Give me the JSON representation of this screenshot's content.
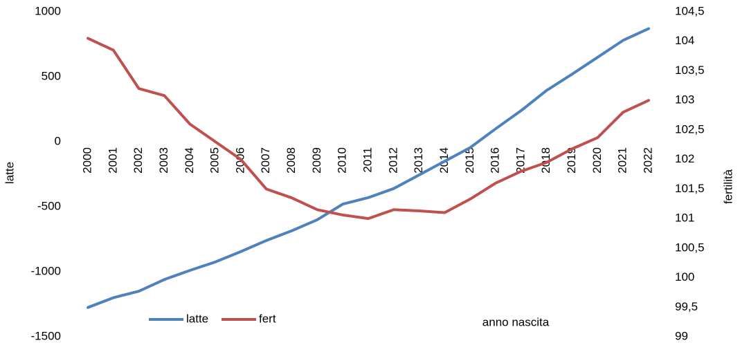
{
  "chart_data": {
    "type": "line",
    "categories": [
      "2000",
      "2001",
      "2002",
      "2003",
      "2004",
      "2005",
      "2006",
      "2007",
      "2008",
      "2009",
      "2010",
      "2011",
      "2012",
      "2013",
      "2014",
      "2015",
      "2016",
      "2017",
      "2018",
      "2019",
      "2020",
      "2021",
      "2022"
    ],
    "series": [
      {
        "name": "latte",
        "color": "#4f81bd",
        "values": [
          -1275,
          -1200,
          -1150,
          -1060,
          -990,
          -925,
          -845,
          -760,
          -685,
          -600,
          -480,
          -430,
          -360,
          -255,
          -150,
          -45,
          100,
          240,
          395,
          520,
          650,
          780,
          870
        ]
      },
      {
        "name": "fert",
        "color": "#c0504d",
        "axis": "y2",
        "values": [
          104.05,
          103.85,
          103.2,
          103.08,
          102.6,
          102.3,
          102.0,
          101.5,
          101.35,
          101.15,
          101.06,
          101.0,
          101.15,
          101.13,
          101.1,
          101.33,
          101.6,
          101.8,
          101.95,
          102.18,
          102.37,
          102.8,
          103.0
        ]
      }
    ],
    "ylabel": "latte",
    "y2label": "fertilità",
    "xlabel": "anno nascita",
    "ylim": [
      -1500,
      1000
    ],
    "yticks": [
      -1500,
      -1000,
      -500,
      0,
      500,
      1000
    ],
    "y2lim": [
      99,
      104.5
    ],
    "y2ticks": [
      99,
      {
        "value": 99.5,
        "label": "99,5"
      },
      100,
      {
        "value": 100.5,
        "label": "100,5"
      },
      101,
      {
        "value": 101.5,
        "label": "101,5"
      },
      102,
      {
        "value": 102.5,
        "label": "102,5"
      },
      103,
      {
        "value": 103.5,
        "label": "103,5"
      },
      104,
      {
        "value": 104.5,
        "label": "104,5"
      }
    ],
    "grid": false
  }
}
